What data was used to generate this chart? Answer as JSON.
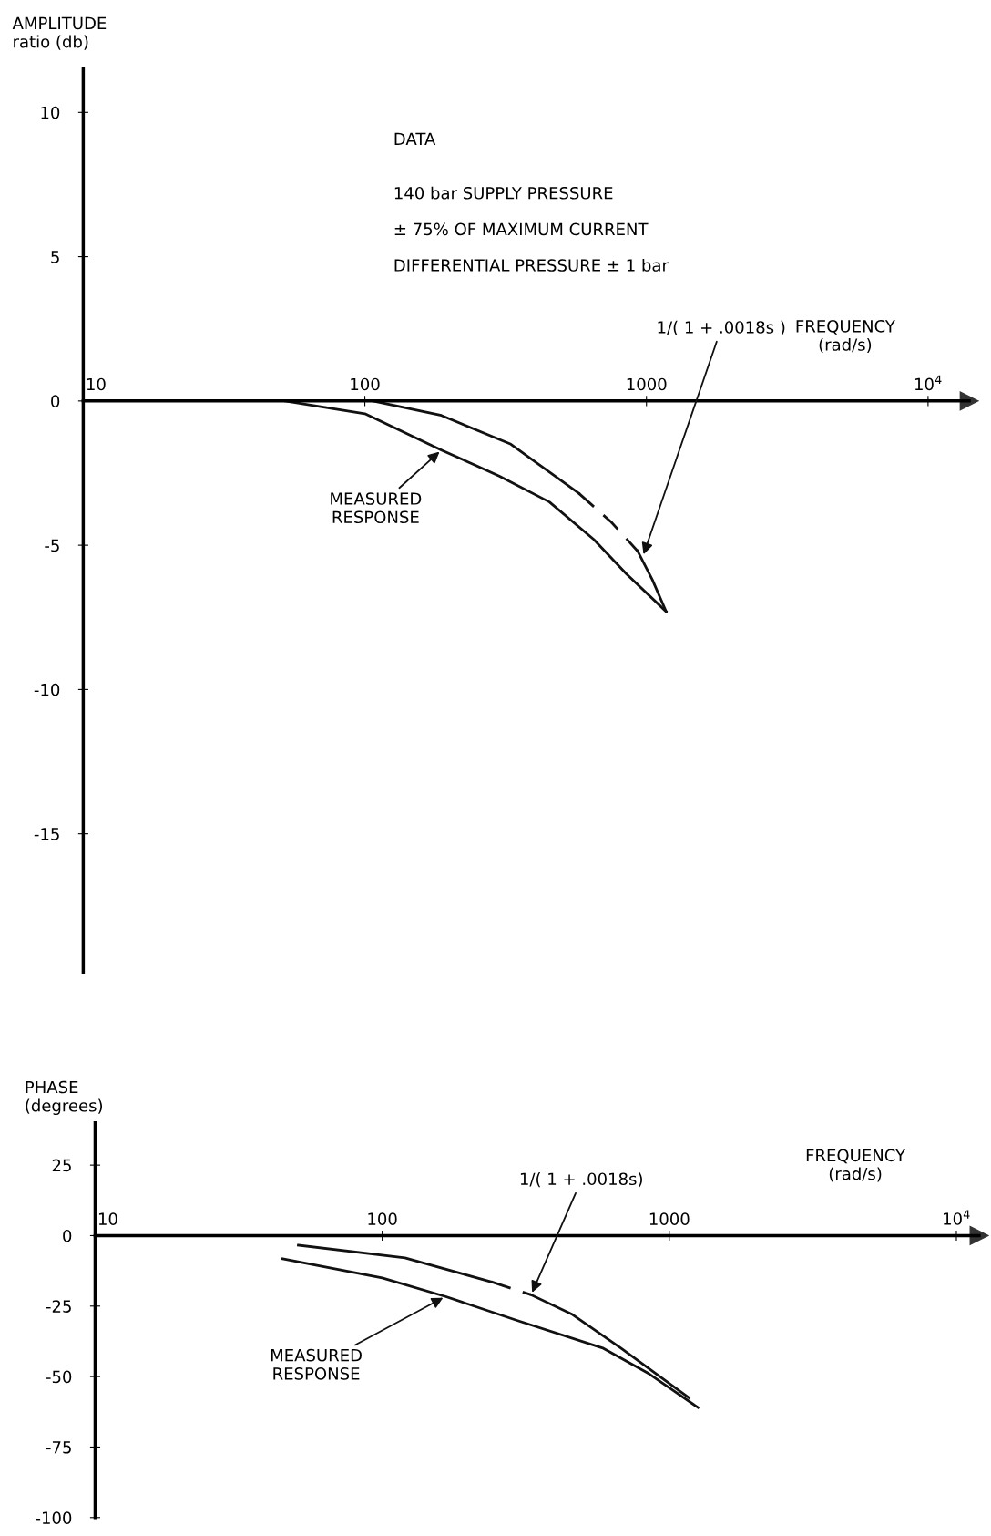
{
  "chart_data": [
    {
      "type": "line",
      "xlabel": "FREQUENCY\n(rad/s)",
      "ylabel": "AMPLITUDE\nratio (db)",
      "log": "x",
      "grid": false,
      "legend": false,
      "marker": "none",
      "xlim": [
        10,
        14000
      ],
      "ylim": [
        -19.8,
        11.5
      ],
      "xticks": [
        10,
        100,
        1000,
        {
          "value": 10000,
          "label": "10$^{4}$"
        }
      ],
      "yticks": [
        10,
        5,
        0,
        -5,
        -10,
        -15
      ],
      "series": [
        {
          "color": "#111111",
          "line_style": "solid",
          "x": [
            52,
            100,
            187,
            300,
            452,
            650,
            850,
            1175
          ],
          "values": [
            0,
            -0.44,
            -1.7,
            -2.6,
            -3.5,
            -4.8,
            -6.0,
            -7.3
          ]
        },
        {
          "color": "#111111",
          "line_style": "solid",
          "x": [
            107,
            187,
            330,
            575
          ],
          "values": [
            0,
            -0.5,
            -1.5,
            -3.2
          ]
        },
        {
          "color": "#111111",
          "line_style": "dashed",
          "x": [
            575,
            750,
            930
          ],
          "values": [
            -3.2,
            -4.2,
            -5.2
          ]
        },
        {
          "color": "#111111",
          "line_style": "solid",
          "x": [
            930,
            1050,
            1175
          ],
          "values": [
            -5.2,
            -6.2,
            -7.3
          ]
        }
      ],
      "annotations": [
        "DATA",
        "140 bar SUPPLY PRESSURE",
        "± 75% OF MAXIMUM CURRENT",
        "DIFFERENTIAL PRESSURE ± 1 bar",
        {
          "text": "MEASURED\nRESPONSE",
          "x": 187,
          "y": -1.7
        },
        {
          "text": "1/( 1 + .0018s )",
          "x": 970,
          "y": -5.4
        }
      ]
    },
    {
      "type": "line",
      "xlabel": "FREQUENCY\n(rad/s)",
      "ylabel": "PHASE\n(degrees)",
      "log": "x",
      "grid": false,
      "legend": false,
      "marker": "none",
      "xlim": [
        10,
        12000
      ],
      "ylim": [
        -100,
        40
      ],
      "xticks": [
        10,
        100,
        1000,
        {
          "value": 10000,
          "label": "10$^{4}$"
        }
      ],
      "yticks": [
        25,
        0,
        -25,
        -50,
        -75,
        -100
      ],
      "series": [
        {
          "color": "#111111",
          "line_style": "solid",
          "x": [
            45,
            100,
            166,
            293,
            590,
            850,
            1260
          ],
          "values": [
            -8.2,
            -15,
            -21.6,
            -30,
            -40,
            -49,
            -61
          ]
        },
        {
          "color": "#111111",
          "line_style": "solid",
          "x": [
            51,
            120,
            240
          ],
          "values": [
            -3.4,
            -7.9,
            -16.4
          ]
        },
        {
          "color": "#111111",
          "line_style": "dashed",
          "x": [
            240,
            330
          ],
          "values": [
            -16.4,
            -21
          ]
        },
        {
          "color": "#111111",
          "line_style": "solid",
          "x": [
            330,
            460,
            680,
            1170
          ],
          "values": [
            -21,
            -28,
            -40,
            -57.5
          ]
        }
      ],
      "annotations": [
        {
          "text": "MEASURED\nRESPONSE",
          "x": 166,
          "y": -21.6
        },
        {
          "text": "1/( 1 + .0018s)",
          "x": 330,
          "y": -21
        }
      ]
    }
  ]
}
